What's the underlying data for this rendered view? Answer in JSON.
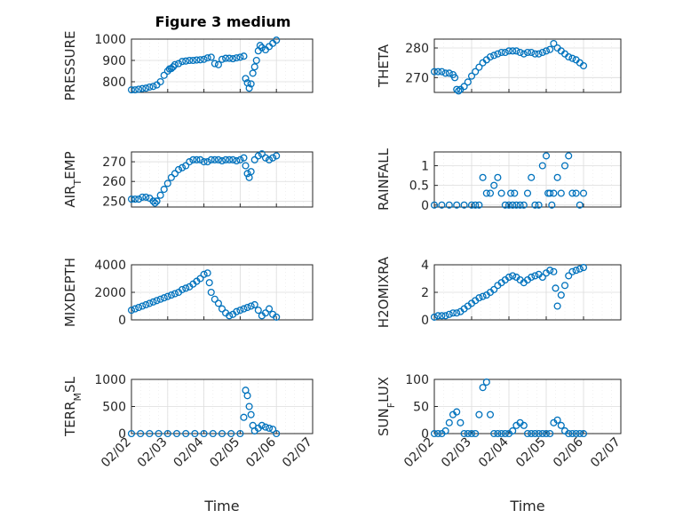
{
  "figure": {
    "title": "Figure 3 medium",
    "marker_color": "#0072BD"
  },
  "chart_data": [
    {
      "type": "scatter",
      "ylabel": "PRESSURE",
      "ylim": [
        750,
        1000
      ],
      "yticks": [
        800,
        900,
        1000
      ],
      "xticks": [],
      "xlabel": "",
      "grid": true,
      "x": [
        0,
        0.1,
        0.2,
        0.3,
        0.4,
        0.5,
        0.6,
        0.7,
        0.8,
        0.9,
        1,
        1.05,
        1.1,
        1.15,
        1.2,
        1.3,
        1.4,
        1.5,
        1.6,
        1.7,
        1.8,
        1.9,
        2,
        2.1,
        2.2,
        2.3,
        2.4,
        2.5,
        2.6,
        2.7,
        2.8,
        2.9,
        3,
        3.1,
        3.15,
        3.2,
        3.25,
        3.3,
        3.35,
        3.4,
        3.45,
        3.5,
        3.55,
        3.6,
        3.7,
        3.8,
        3.9,
        4
      ],
      "y": [
        762,
        762,
        765,
        768,
        770,
        775,
        778,
        785,
        800,
        830,
        850,
        860,
        862,
        870,
        880,
        885,
        895,
        897,
        900,
        900,
        902,
        903,
        905,
        912,
        915,
        885,
        880,
        905,
        910,
        910,
        908,
        912,
        915,
        920,
        815,
        795,
        770,
        790,
        840,
        870,
        900,
        945,
        970,
        960,
        950,
        965,
        980,
        995
      ]
    },
    {
      "type": "scatter",
      "ylabel": "THETA",
      "ylim": [
        265,
        283
      ],
      "yticks": [
        270,
        280
      ],
      "xticks": [],
      "xlabel": "",
      "grid": true,
      "x": [
        0,
        0.1,
        0.2,
        0.3,
        0.4,
        0.5,
        0.55,
        0.6,
        0.65,
        0.7,
        0.8,
        0.9,
        1,
        1.1,
        1.2,
        1.3,
        1.4,
        1.5,
        1.6,
        1.7,
        1.8,
        1.9,
        2,
        2.1,
        2.2,
        2.3,
        2.4,
        2.5,
        2.6,
        2.7,
        2.8,
        2.9,
        3,
        3.1,
        3.2,
        3.3,
        3.4,
        3.5,
        3.6,
        3.7,
        3.8,
        3.9,
        4
      ],
      "y": [
        272,
        272,
        272,
        271.5,
        271.5,
        271,
        270,
        266,
        265.5,
        266,
        267,
        268.5,
        270.5,
        272,
        273.5,
        275,
        276,
        277,
        277.5,
        278,
        278.5,
        278.5,
        279,
        279,
        279,
        278.5,
        278,
        278.5,
        278.5,
        278,
        278,
        278.5,
        279,
        279.5,
        281.5,
        280,
        279,
        278,
        277,
        276.5,
        276,
        275,
        274
      ]
    },
    {
      "type": "scatter",
      "ylabel": "AIR_TEMP",
      "ylim": [
        247,
        275
      ],
      "yticks": [
        250,
        260,
        270
      ],
      "xticks": [],
      "xlabel": "",
      "grid": true,
      "x": [
        0,
        0.1,
        0.2,
        0.3,
        0.4,
        0.5,
        0.6,
        0.65,
        0.7,
        0.8,
        0.9,
        1,
        1.1,
        1.2,
        1.3,
        1.4,
        1.5,
        1.6,
        1.7,
        1.8,
        1.9,
        2,
        2.1,
        2.2,
        2.3,
        2.4,
        2.5,
        2.6,
        2.7,
        2.8,
        2.9,
        3,
        3.1,
        3.15,
        3.2,
        3.25,
        3.3,
        3.4,
        3.5,
        3.6,
        3.7,
        3.8,
        3.9,
        4
      ],
      "y": [
        251,
        251,
        251,
        252,
        252,
        251.5,
        250,
        249,
        250,
        253,
        256,
        259,
        262,
        264,
        266,
        267,
        268,
        270,
        271,
        271,
        271,
        270,
        270,
        271,
        271,
        271,
        270.5,
        271,
        271,
        271,
        270.5,
        271,
        272,
        268,
        264,
        262,
        265,
        271,
        273,
        274,
        272,
        271,
        272,
        273
      ]
    },
    {
      "type": "scatter",
      "ylabel": "RAINFALL",
      "ylim": [
        -0.05,
        1.35
      ],
      "yticks": [
        0,
        0.5,
        1
      ],
      "xticks": [],
      "xlabel": "",
      "grid": true,
      "x": [
        0,
        0.2,
        0.4,
        0.6,
        0.8,
        1,
        1.1,
        1.2,
        1.3,
        1.4,
        1.5,
        1.6,
        1.7,
        1.8,
        1.9,
        2,
        2.05,
        2.1,
        2.15,
        2.2,
        2.3,
        2.4,
        2.5,
        2.6,
        2.7,
        2.8,
        2.9,
        3,
        3.05,
        3.1,
        3.15,
        3.2,
        3.3,
        3.4,
        3.5,
        3.6,
        3.7,
        3.8,
        3.9,
        4
      ],
      "y": [
        0,
        0,
        0,
        0,
        0,
        0,
        0,
        0,
        0.7,
        0.3,
        0.3,
        0.5,
        0.7,
        0.3,
        0,
        0,
        0.3,
        0,
        0.3,
        0,
        0,
        0,
        0.3,
        0.7,
        0,
        0,
        1,
        1.25,
        0.3,
        0.3,
        0,
        0.3,
        0.7,
        0.3,
        1,
        1.25,
        0.3,
        0.3,
        0,
        0.3
      ]
    },
    {
      "type": "scatter",
      "ylabel": "MIXDEPTH",
      "ylim": [
        0,
        4000
      ],
      "yticks": [
        0,
        2000,
        4000
      ],
      "xticks": [],
      "xlabel": "",
      "grid": true,
      "x": [
        0,
        0.1,
        0.2,
        0.3,
        0.4,
        0.5,
        0.6,
        0.7,
        0.8,
        0.9,
        1,
        1.1,
        1.2,
        1.3,
        1.4,
        1.5,
        1.6,
        1.7,
        1.8,
        1.9,
        2,
        2.1,
        2.15,
        2.2,
        2.3,
        2.4,
        2.5,
        2.6,
        2.7,
        2.8,
        2.9,
        3,
        3.1,
        3.2,
        3.3,
        3.4,
        3.5,
        3.6,
        3.7,
        3.8,
        3.9,
        4
      ],
      "y": [
        700,
        800,
        900,
        1000,
        1100,
        1200,
        1300,
        1400,
        1500,
        1600,
        1700,
        1800,
        1900,
        2000,
        2200,
        2300,
        2400,
        2600,
        2800,
        3000,
        3300,
        3400,
        2700,
        2000,
        1500,
        1200,
        800,
        500,
        300,
        400,
        600,
        700,
        800,
        900,
        1000,
        1100,
        700,
        300,
        500,
        800,
        400,
        200
      ]
    },
    {
      "type": "scatter",
      "ylabel": "H2OMIXRA",
      "ylim": [
        0,
        4
      ],
      "yticks": [
        0,
        2,
        4
      ],
      "xticks": [],
      "xlabel": "",
      "grid": true,
      "x": [
        0,
        0.1,
        0.2,
        0.3,
        0.4,
        0.5,
        0.6,
        0.7,
        0.8,
        0.9,
        1,
        1.1,
        1.2,
        1.3,
        1.4,
        1.5,
        1.6,
        1.7,
        1.8,
        1.9,
        2,
        2.1,
        2.2,
        2.3,
        2.4,
        2.5,
        2.6,
        2.7,
        2.8,
        2.9,
        3,
        3.1,
        3.2,
        3.25,
        3.3,
        3.4,
        3.5,
        3.6,
        3.7,
        3.8,
        3.9,
        4
      ],
      "y": [
        0.2,
        0.3,
        0.3,
        0.3,
        0.4,
        0.5,
        0.5,
        0.6,
        0.8,
        1,
        1.2,
        1.4,
        1.6,
        1.7,
        1.8,
        2,
        2.2,
        2.5,
        2.7,
        2.9,
        3.1,
        3.2,
        3.1,
        2.9,
        2.7,
        2.9,
        3.1,
        3.2,
        3.3,
        3.1,
        3.4,
        3.6,
        3.5,
        2.3,
        1,
        1.8,
        2.5,
        3.2,
        3.5,
        3.6,
        3.7,
        3.8
      ]
    },
    {
      "type": "scatter",
      "ylabel": "TERR_MSL",
      "ylim": [
        0,
        1000
      ],
      "yticks": [
        0,
        500,
        1000
      ],
      "xticks": [
        "02/02",
        "02/03",
        "02/04",
        "02/05",
        "02/06",
        "02/07"
      ],
      "xlim": [
        0,
        5
      ],
      "xlabel": "Time",
      "grid": true,
      "x": [
        0,
        0.25,
        0.5,
        0.75,
        1,
        1.25,
        1.5,
        1.75,
        2,
        2.25,
        2.5,
        2.75,
        3,
        3.1,
        3.15,
        3.2,
        3.25,
        3.3,
        3.35,
        3.4,
        3.5,
        3.6,
        3.7,
        3.8,
        3.9,
        4
      ],
      "y": [
        0,
        0,
        0,
        0,
        0,
        0,
        0,
        0,
        0,
        0,
        0,
        0,
        0,
        300,
        800,
        700,
        500,
        350,
        150,
        50,
        100,
        150,
        120,
        100,
        80,
        0
      ]
    },
    {
      "type": "scatter",
      "ylabel": "SUN_FLUX",
      "ylim": [
        0,
        100
      ],
      "yticks": [
        0,
        50,
        100
      ],
      "xticks": [
        "02/02",
        "02/03",
        "02/04",
        "02/05",
        "02/06",
        "02/07"
      ],
      "xlim": [
        0,
        5
      ],
      "xlabel": "Time",
      "grid": true,
      "x": [
        0,
        0.1,
        0.2,
        0.3,
        0.4,
        0.5,
        0.6,
        0.7,
        0.8,
        0.9,
        1,
        1.1,
        1.2,
        1.3,
        1.4,
        1.5,
        1.6,
        1.7,
        1.8,
        1.9,
        2,
        2.1,
        2.2,
        2.3,
        2.4,
        2.5,
        2.6,
        2.7,
        2.8,
        2.9,
        3,
        3.1,
        3.2,
        3.3,
        3.4,
        3.5,
        3.6,
        3.7,
        3.8,
        3.9,
        4
      ],
      "y": [
        0,
        0,
        0,
        5,
        20,
        35,
        40,
        20,
        0,
        0,
        0,
        0,
        35,
        85,
        95,
        35,
        0,
        0,
        0,
        0,
        0,
        5,
        15,
        20,
        15,
        0,
        0,
        0,
        0,
        0,
        0,
        0,
        20,
        25,
        15,
        5,
        0,
        0,
        0,
        0,
        0
      ]
    }
  ]
}
